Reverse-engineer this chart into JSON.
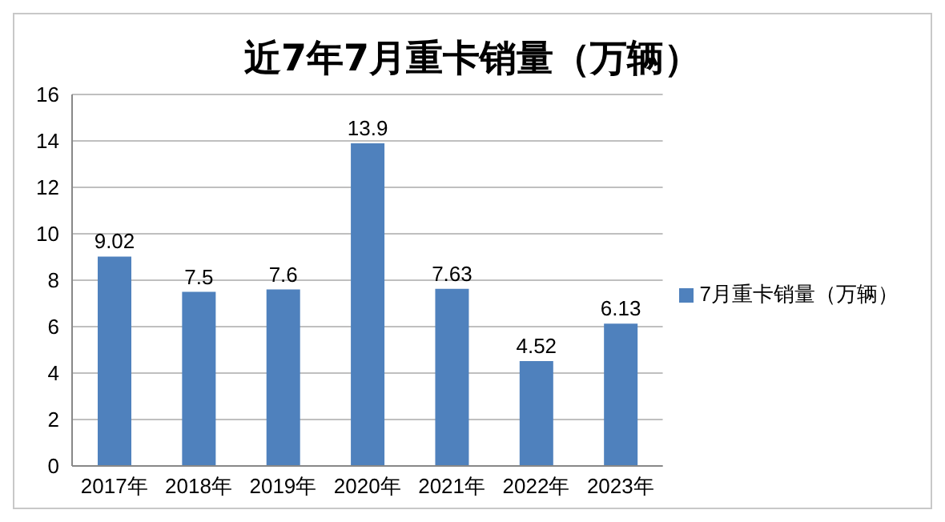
{
  "chart_data": {
    "type": "bar",
    "title": "近7年7月重卡销量（万辆）",
    "categories": [
      "2017年",
      "2018年",
      "2019年",
      "2020年",
      "2021年",
      "2022年",
      "2023年"
    ],
    "series": [
      {
        "name": "7月重卡销量（万辆）",
        "color": "#4f81bd",
        "values": [
          9.02,
          7.5,
          7.6,
          13.9,
          7.63,
          4.52,
          6.13
        ]
      }
    ],
    "ylim": [
      0,
      16
    ],
    "yticks": [
      0,
      2,
      4,
      6,
      8,
      10,
      12,
      14,
      16
    ],
    "grid": "y",
    "legend": "right",
    "data_labels": true
  }
}
